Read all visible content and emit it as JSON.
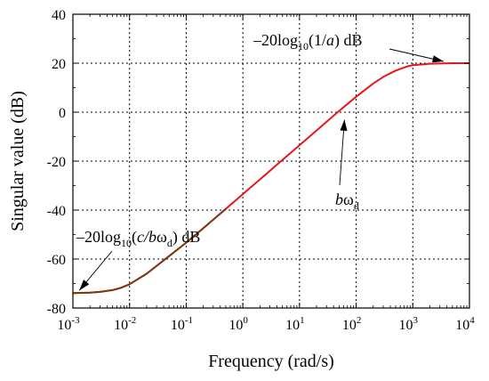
{
  "chart_data": {
    "type": "line",
    "x_scale": "log",
    "xlabel": "Frequency (rad/s)",
    "ylabel": "Singular value (dB)",
    "xlim": [
      0.001,
      10000
    ],
    "ylim": [
      -80,
      40
    ],
    "grid": true,
    "x_ticks": [
      {
        "value": 0.001,
        "base": "10",
        "exp": "-3"
      },
      {
        "value": 0.01,
        "base": "10",
        "exp": "-2"
      },
      {
        "value": 0.1,
        "base": "10",
        "exp": "-1"
      },
      {
        "value": 1,
        "base": "10",
        "exp": "0"
      },
      {
        "value": 10,
        "base": "10",
        "exp": "1"
      },
      {
        "value": 100,
        "base": "10",
        "exp": "2"
      },
      {
        "value": 1000,
        "base": "10",
        "exp": "3"
      },
      {
        "value": 10000,
        "base": "10",
        "exp": "4"
      }
    ],
    "y_ticks": [
      {
        "value": 40,
        "label": "40"
      },
      {
        "value": 20,
        "label": "20"
      },
      {
        "value": 0,
        "label": "0"
      },
      {
        "value": -20,
        "label": "-20"
      },
      {
        "value": -40,
        "label": "-40"
      },
      {
        "value": -60,
        "label": "-60"
      },
      {
        "value": -80,
        "label": "-80"
      }
    ],
    "series": [
      {
        "color": "#e8151b",
        "low_color": "#7a3a10",
        "low_color_until_x": 0.5,
        "x": [
          0.001,
          0.002,
          0.003,
          0.005,
          0.007,
          0.01,
          0.02,
          0.05,
          0.1,
          0.2,
          0.5,
          1,
          2,
          5,
          10,
          20,
          50,
          100,
          200,
          300,
          500,
          800,
          1000,
          2000,
          5000,
          10000
        ],
        "y": [
          -73.9,
          -73.7,
          -73.4,
          -72.7,
          -71.8,
          -70.3,
          -66.0,
          -58.8,
          -53.3,
          -47.4,
          -39.5,
          -33.5,
          -27.5,
          -19.5,
          -13.5,
          -7.5,
          0.5,
          6.3,
          11.7,
          14.4,
          17.0,
          18.7,
          19.2,
          19.8,
          20.0,
          20.0
        ]
      }
    ],
    "annotations": [
      {
        "id": "top",
        "pre": "–20log",
        "sub": "10",
        "mid": "(1/",
        "ital": "a",
        "post": ") dB",
        "target_x": 3500,
        "target_y": 20
      },
      {
        "id": "bottom",
        "pre": "–20log",
        "sub": "10",
        "mid": "(",
        "ital": "c/b",
        "greek": "ω",
        "sub2": "d",
        "post": ") dB",
        "target_x": 0.0013,
        "target_y": -73.9
      },
      {
        "id": "corner",
        "ital": "b",
        "greek": "ω",
        "sub": "d",
        "target_x": 60,
        "target_y": 2
      }
    ]
  }
}
